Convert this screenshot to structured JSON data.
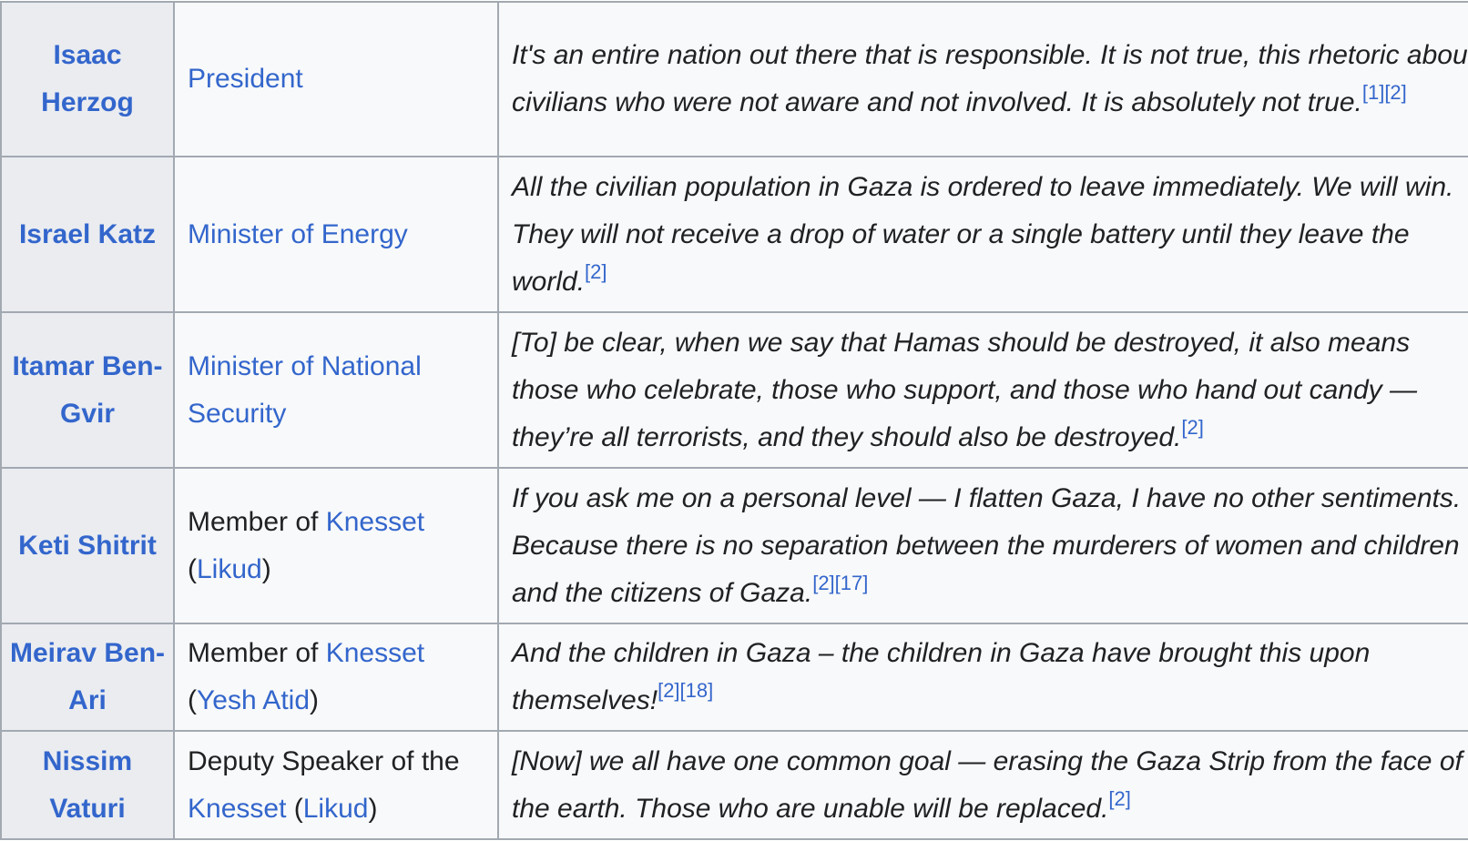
{
  "rows": [
    {
      "name": "Isaac Herzog",
      "role": [
        {
          "text": "President",
          "link": true
        }
      ],
      "quote": "It's an entire nation out there that is responsible. It is not true, this rhetoric about civilians who were not aware and not involved. It is absolutely not true.",
      "refs": [
        "[1]",
        "[2]"
      ]
    },
    {
      "name": "Israel Katz",
      "role": [
        {
          "text": "Minister of Energy",
          "link": true
        }
      ],
      "quote": "All the civilian population in Gaza is ordered to leave immediately. We will win. They will not receive a drop of water or a single battery until they leave the world.",
      "refs": [
        "[2]"
      ]
    },
    {
      "name": "Itamar Ben-Gvir",
      "role": [
        {
          "text": "Minister of National Security",
          "link": true
        }
      ],
      "quote": "[To] be clear, when we say that Hamas should be destroyed, it also means those who celebrate, those who support, and those who hand out candy — they’re all terrorists, and they should also be destroyed.",
      "refs": [
        "[2]"
      ]
    },
    {
      "name": "Keti Shitrit",
      "role": [
        {
          "text": "Member of ",
          "link": false
        },
        {
          "text": "Knesset",
          "link": true
        },
        {
          "text": " (",
          "link": false
        },
        {
          "text": "Likud",
          "link": true
        },
        {
          "text": ")",
          "link": false
        }
      ],
      "quote": "If you ask me on a personal level — I flatten Gaza, I have no other sentiments. Because there is no separation between the murderers of women and children and the citizens of Gaza.",
      "refs": [
        "[2]",
        "[17]"
      ]
    },
    {
      "name": "Meirav Ben-Ari",
      "role": [
        {
          "text": "Member of ",
          "link": false
        },
        {
          "text": "Knesset",
          "link": true
        },
        {
          "text": " (",
          "link": false
        },
        {
          "text": "Yesh Atid",
          "link": true
        },
        {
          "text": ")",
          "link": false
        }
      ],
      "quote": "And the children in Gaza – the children in Gaza have brought this upon themselves!",
      "refs": [
        "[2]",
        "[18]"
      ]
    },
    {
      "name": "Nissim Vaturi",
      "role": [
        {
          "text": "Deputy Speaker of the ",
          "link": false
        },
        {
          "text": "Knesset",
          "link": true
        },
        {
          "text": " (",
          "link": false
        },
        {
          "text": "Likud",
          "link": true
        },
        {
          "text": ")",
          "link": false
        }
      ],
      "quote": "[Now] we all have one common goal — erasing the Gaza Strip from the face of the earth. Those who are unable will be replaced.",
      "refs": [
        "[2]"
      ]
    }
  ],
  "colors": {
    "link": "#3366cc",
    "header_bg": "#eaecf0",
    "cell_bg": "#f8f9fa",
    "border": "#a2a9b1",
    "text": "#202122"
  }
}
